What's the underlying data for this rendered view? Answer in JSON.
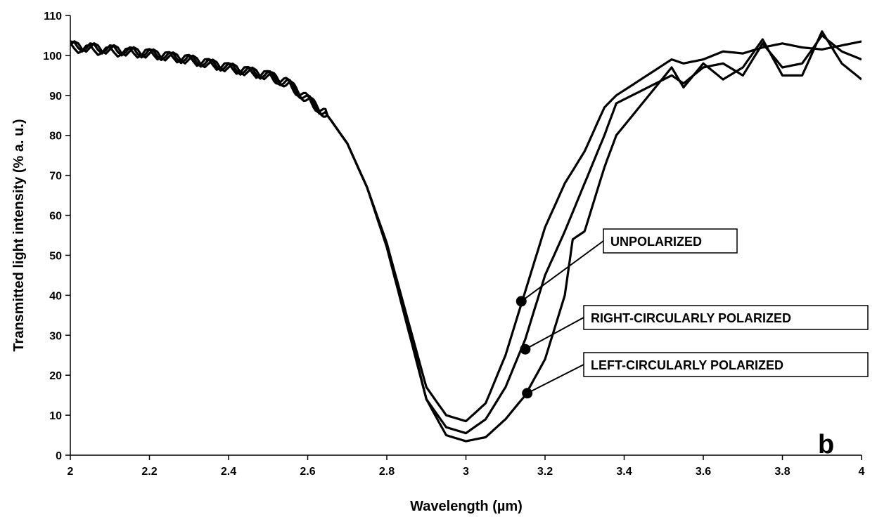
{
  "chart_data": {
    "type": "line",
    "xlabel": "Wavelength (µm)",
    "ylabel": "Transmitted light intensity (% a. u.)",
    "panel_label": "b",
    "xlim": [
      2,
      4
    ],
    "ylim": [
      0,
      110
    ],
    "x_ticks": [
      "2",
      "2.2",
      "2.4",
      "2.6",
      "2.8",
      "3",
      "3.2",
      "3.4",
      "3.6",
      "3.8",
      "4"
    ],
    "y_ticks": [
      "0",
      "10",
      "20",
      "30",
      "40",
      "50",
      "60",
      "70",
      "80",
      "90",
      "100",
      "110"
    ],
    "grid": false,
    "legend": "callouts",
    "series": [
      {
        "name": "UNPOLARIZED",
        "marker": {
          "x": 3.14,
          "y": 38.5
        },
        "x": [
          2.0,
          2.1,
          2.2,
          2.3,
          2.4,
          2.5,
          2.55,
          2.6,
          2.65,
          2.7,
          2.75,
          2.8,
          2.85,
          2.9,
          2.95,
          3.0,
          3.05,
          3.1,
          3.15,
          3.2,
          3.25,
          3.3,
          3.35,
          3.38,
          3.52,
          3.55,
          3.6,
          3.65,
          3.7,
          3.75,
          3.8,
          3.85,
          3.9,
          3.95,
          4.0
        ],
        "y": [
          102.5,
          101.5,
          100.5,
          99,
          97,
          95,
          93,
          89,
          85,
          78,
          67,
          53,
          35,
          17,
          10,
          8.5,
          13,
          25,
          41,
          57,
          68,
          76,
          87,
          90,
          99,
          98,
          99,
          101,
          100.5,
          102,
          103,
          102,
          101.5,
          102.5,
          103.5
        ]
      },
      {
        "name": "RIGHT-CIRCULARLY POLARIZED",
        "marker": {
          "x": 3.15,
          "y": 26.5
        },
        "x": [
          2.0,
          2.1,
          2.2,
          2.3,
          2.4,
          2.5,
          2.55,
          2.6,
          2.65,
          2.7,
          2.75,
          2.8,
          2.85,
          2.9,
          2.95,
          3.0,
          3.05,
          3.1,
          3.15,
          3.2,
          3.25,
          3.3,
          3.35,
          3.38,
          3.52,
          3.55,
          3.6,
          3.65,
          3.7,
          3.75,
          3.8,
          3.85,
          3.9,
          3.95,
          4.0
        ],
        "y": [
          102.5,
          101.5,
          100.5,
          99,
          97,
          95,
          93,
          89,
          85,
          78,
          67,
          52,
          33,
          14,
          7,
          5.5,
          9,
          17,
          29,
          45,
          56,
          68,
          80,
          88,
          95,
          93,
          97,
          98,
          95,
          103,
          97,
          98,
          105,
          101,
          99
        ]
      },
      {
        "name": "LEFT-CIRCULARLY POLARIZED",
        "marker": {
          "x": 3.155,
          "y": 15.5
        },
        "x": [
          2.0,
          2.1,
          2.2,
          2.3,
          2.4,
          2.5,
          2.55,
          2.6,
          2.65,
          2.7,
          2.75,
          2.8,
          2.85,
          2.9,
          2.95,
          3.0,
          3.05,
          3.1,
          3.15,
          3.2,
          3.25,
          3.27,
          3.3,
          3.35,
          3.38,
          3.52,
          3.55,
          3.6,
          3.65,
          3.7,
          3.75,
          3.8,
          3.85,
          3.9,
          3.95,
          4.0
        ],
        "y": [
          102,
          101,
          100.5,
          99,
          97,
          95,
          93,
          89,
          85,
          78,
          67,
          53,
          34,
          14,
          5,
          3.5,
          4.5,
          9,
          15,
          24,
          40,
          54,
          56,
          72,
          80,
          97,
          92,
          98,
          94,
          97,
          104,
          95,
          95,
          106,
          98,
          94
        ]
      }
    ]
  }
}
